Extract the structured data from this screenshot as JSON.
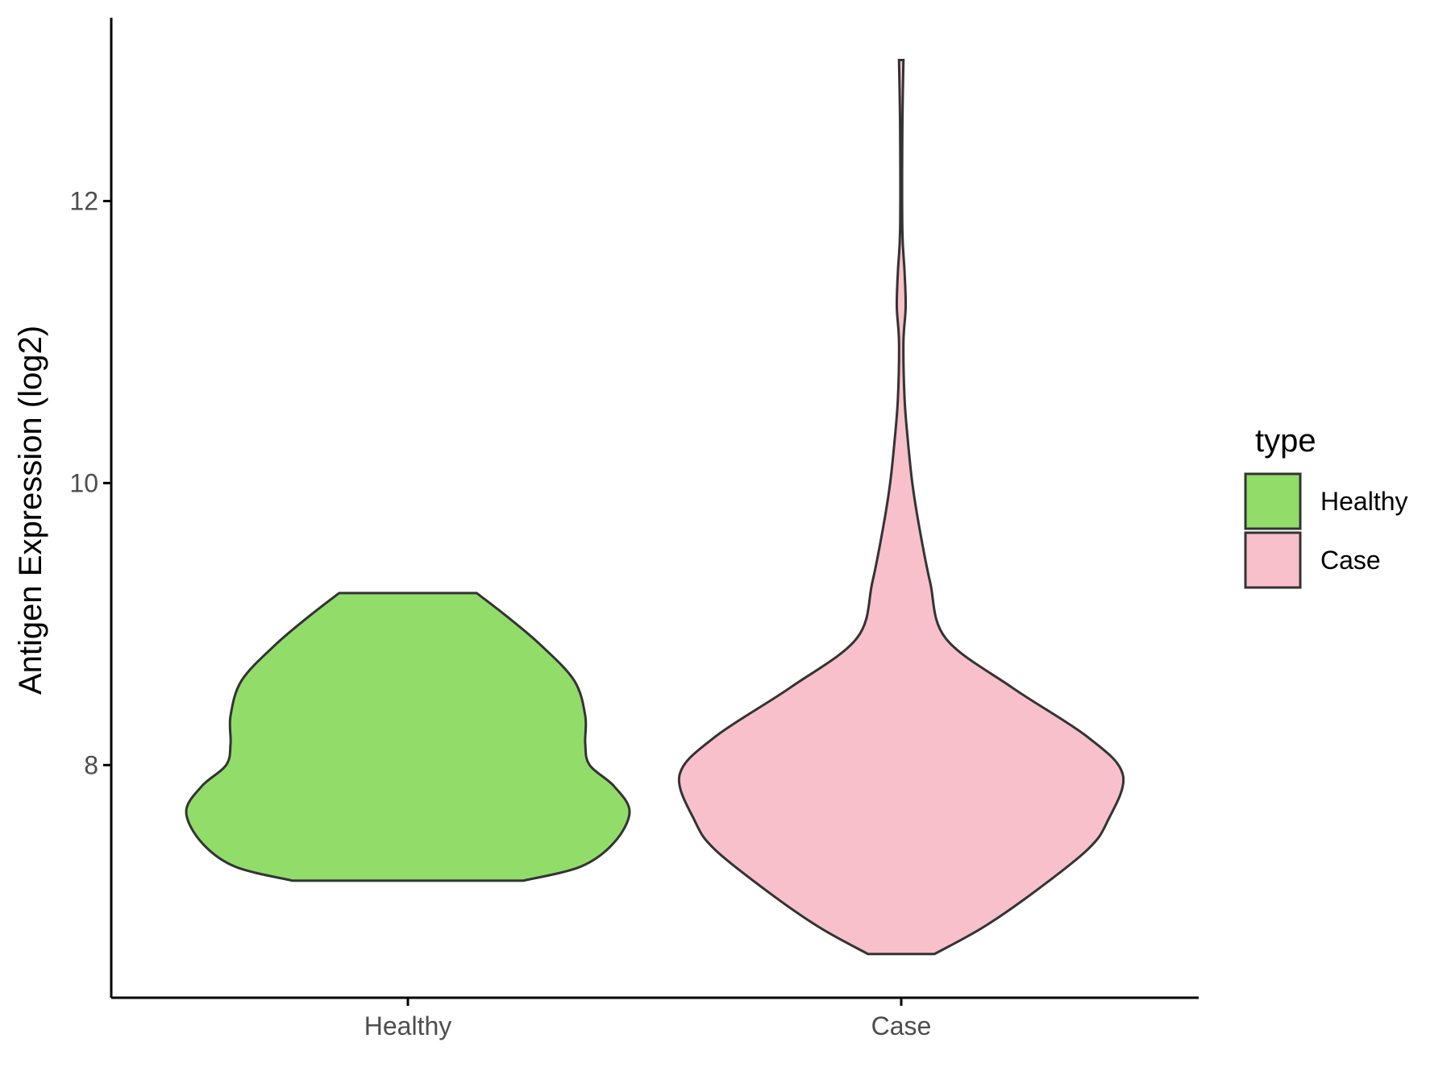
{
  "chart_data": {
    "type": "violin",
    "title": "",
    "xlabel": "",
    "ylabel": "Antigen Expression (log2)",
    "categories": [
      "Healthy",
      "Case"
    ],
    "ylim": [
      6.35,
      13.3
    ],
    "yticks": [
      8,
      10,
      12
    ],
    "grid": false,
    "legend": {
      "title": "type",
      "placement": "right",
      "entries": [
        "Healthy",
        "Case"
      ]
    },
    "series": [
      {
        "name": "Healthy",
        "color": "#92DC6A",
        "min": 7.18,
        "max": 9.22,
        "density_profile": [
          [
            7.18,
            0.52
          ],
          [
            7.28,
            0.78
          ],
          [
            7.45,
            0.93
          ],
          [
            7.67,
            1.0
          ],
          [
            7.85,
            0.93
          ],
          [
            8.0,
            0.82
          ],
          [
            8.15,
            0.8
          ],
          [
            8.35,
            0.8
          ],
          [
            8.6,
            0.75
          ],
          [
            8.85,
            0.6
          ],
          [
            9.05,
            0.45
          ],
          [
            9.22,
            0.31
          ]
        ]
      },
      {
        "name": "Case",
        "color": "#F7C0CB",
        "min": 6.66,
        "max": 13.0,
        "density_profile": [
          [
            6.66,
            0.15
          ],
          [
            6.85,
            0.37
          ],
          [
            7.1,
            0.6
          ],
          [
            7.4,
            0.84
          ],
          [
            7.6,
            0.93
          ],
          [
            7.93,
            1.0
          ],
          [
            8.2,
            0.84
          ],
          [
            8.55,
            0.5
          ],
          [
            8.9,
            0.2
          ],
          [
            9.3,
            0.13
          ],
          [
            9.7,
            0.08
          ],
          [
            10.0,
            0.05
          ],
          [
            10.3,
            0.03
          ],
          [
            10.6,
            0.015
          ],
          [
            11.0,
            0.01
          ],
          [
            11.25,
            0.02
          ],
          [
            11.5,
            0.015
          ],
          [
            11.8,
            0.005
          ],
          [
            12.5,
            0.005
          ],
          [
            13.0,
            0.01
          ]
        ]
      }
    ]
  }
}
